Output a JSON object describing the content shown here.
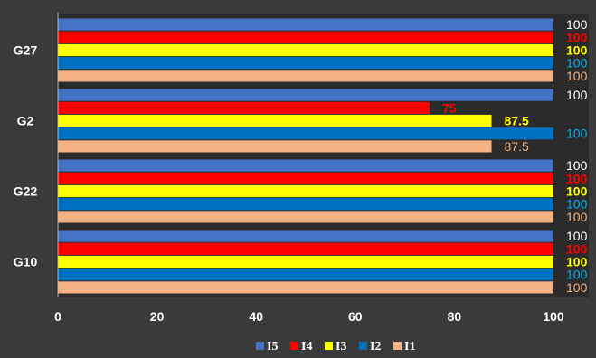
{
  "chart_data": {
    "type": "bar",
    "orientation": "horizontal",
    "categories": [
      "G27",
      "G2",
      "G22",
      "G10"
    ],
    "xlim": [
      0,
      100
    ],
    "xticks": [
      0,
      20,
      40,
      60,
      80,
      100
    ],
    "grid": false,
    "legend_position": "bottom",
    "title": "",
    "xlabel": "",
    "ylabel": "",
    "series": [
      {
        "name": "I5",
        "color": "#4472c4",
        "label_color": "#ffffff",
        "values": [
          100,
          100,
          100,
          100
        ],
        "labels": [
          "100",
          "100",
          "100",
          "100"
        ]
      },
      {
        "name": "I4",
        "color": "#ff0000",
        "label_color": "#ff0000",
        "values": [
          100,
          75,
          100,
          100
        ],
        "labels": [
          "100",
          "75",
          "100",
          "100"
        ]
      },
      {
        "name": "I3",
        "color": "#ffff00",
        "label_color": "#ffff00",
        "values": [
          100,
          87.5,
          100,
          100
        ],
        "labels": [
          "100",
          "87.5",
          "100",
          "100"
        ]
      },
      {
        "name": "I2",
        "color": "#0070c0",
        "label_color": "#00b0f0",
        "values": [
          100,
          100,
          100,
          100
        ],
        "labels": [
          "100",
          "100",
          "100",
          "100"
        ]
      },
      {
        "name": "I1",
        "color": "#f4b183",
        "label_color": "#f4b183",
        "values": [
          100,
          87.5,
          100,
          100
        ],
        "labels": [
          "100",
          "87.5",
          "100",
          "100"
        ]
      }
    ]
  }
}
